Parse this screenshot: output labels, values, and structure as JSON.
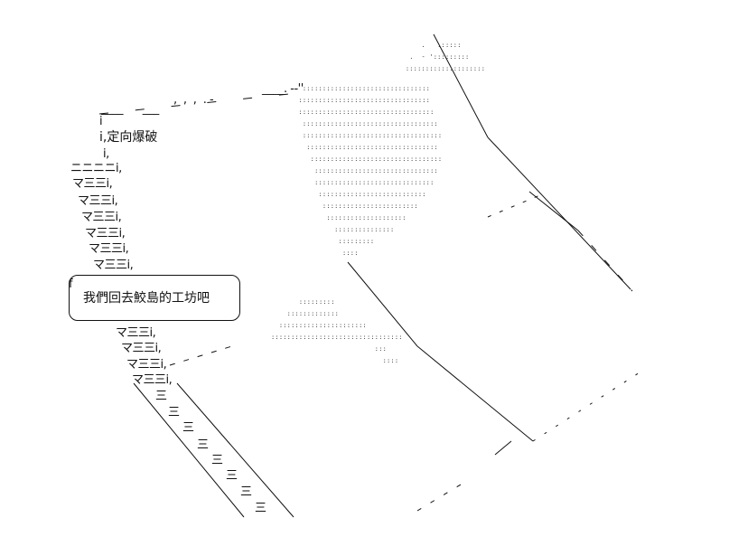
{
  "art": {
    "caption": "i,定向爆破",
    "dialogue": "我們回去鮫島的工坊吧",
    "bubble_open": "f",
    "stair_lines": [
      "ニニニニi,",
      "マ三三i,",
      "マ三三i,",
      "マ三三i,",
      "マ三三i,",
      "マ三三i,",
      "マ三三i,"
    ],
    "stair_lines_lower": [
      "マ三三i,",
      "マ三三i,",
      "マ三三i,",
      "マ三三i,"
    ],
    "debris_lines": [
      "三",
      "三",
      "三",
      "三",
      "三",
      "三",
      "三",
      "三"
    ],
    "frame_top": "____      ___",
    "frame_top_2": ",  ,  ,  . -",
    "frame_top_3": "____. -‐''",
    "colors": {
      "ink": "#111111",
      "dots": "#333333"
    }
  }
}
